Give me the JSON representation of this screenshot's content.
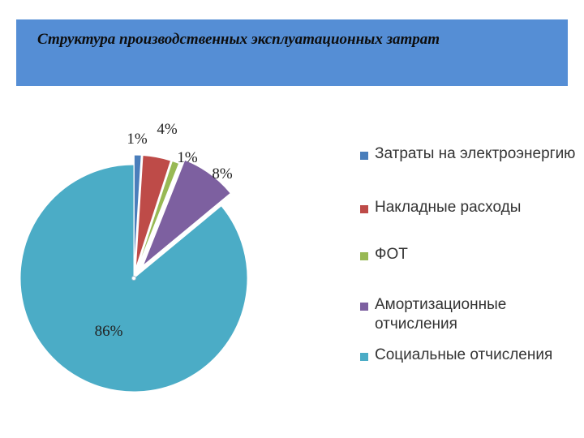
{
  "title": "Структура производственных эксплуатационных затрат",
  "colors": {
    "banner": "#558ed5",
    "label_text": "#222222",
    "legend_text": "#333333"
  },
  "chart_data": {
    "type": "pie",
    "title": "",
    "exploded": true,
    "legend_position": "right",
    "slices": [
      {
        "label": "Затраты на электроэнергию",
        "value": 1,
        "display": "1%",
        "color": "#4a7ebb"
      },
      {
        "label": "Накладные расходы",
        "value": 4,
        "display": "4%",
        "color": "#be4b48"
      },
      {
        "label": "ФОТ",
        "value": 1,
        "display": "1%",
        "color": "#98b954"
      },
      {
        "label": "Амортизационные отчисления",
        "value": 8,
        "display": "8%",
        "color": "#7d60a0"
      },
      {
        "label": "Социальные отчисления",
        "value": 86,
        "display": "86%",
        "color": "#4bacc6"
      }
    ]
  }
}
